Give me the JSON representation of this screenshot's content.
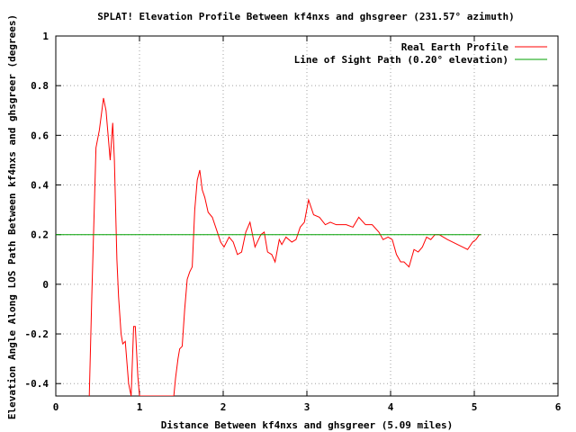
{
  "chart_data": {
    "type": "line",
    "title": "SPLAT! Elevation Profile Between kf4nxs and ghsgreer (231.57° azimuth)",
    "xlabel": "Distance Between kf4nxs and ghsgreer (5.09 miles)",
    "ylabel": "Elevation Angle Along LOS Path Between kf4nxs and ghsgreer (degrees)",
    "xlim": [
      0,
      6
    ],
    "ylim": [
      -0.45,
      1
    ],
    "xticks": [
      "0",
      "1",
      "2",
      "3",
      "4",
      "5",
      "6"
    ],
    "yticks": [
      "1",
      "0.8",
      "0.6",
      "0.4",
      "0.2",
      "0",
      "-0.2",
      "-0.4"
    ],
    "grid": true,
    "legend": "top-right",
    "series": [
      {
        "name": "Real Earth Profile",
        "color": "#ff0000",
        "x": [
          0.4,
          0.43,
          0.48,
          0.52,
          0.57,
          0.6,
          0.65,
          0.68,
          0.7,
          0.73,
          0.75,
          0.78,
          0.8,
          0.83,
          0.87,
          0.9,
          0.93,
          0.95,
          0.98,
          1.0,
          1.03,
          1.05,
          1.08,
          1.1,
          1.13,
          1.16,
          1.18,
          1.21,
          1.24,
          1.27,
          1.3,
          1.32,
          1.35,
          1.38,
          1.41,
          1.43,
          1.46,
          1.48,
          1.51,
          1.54,
          1.57,
          1.6,
          1.63,
          1.66,
          1.69,
          1.72,
          1.75,
          1.78,
          1.82,
          1.87,
          1.92,
          1.97,
          2.01,
          2.07,
          2.12,
          2.17,
          2.22,
          2.27,
          2.32,
          2.38,
          2.45,
          2.49,
          2.53,
          2.58,
          2.62,
          2.67,
          2.7,
          2.75,
          2.82,
          2.87,
          2.92,
          2.97,
          3.02,
          3.08,
          3.15,
          3.22,
          3.28,
          3.35,
          3.4,
          3.47,
          3.55,
          3.62,
          3.7,
          3.78,
          3.86,
          3.91,
          3.97,
          4.02,
          4.07,
          4.12,
          4.16,
          4.22,
          4.28,
          4.33,
          4.38,
          4.43,
          4.48,
          4.53,
          4.58,
          4.63,
          4.68,
          4.74,
          4.8,
          4.86,
          4.92,
          4.98,
          5.02,
          5.04,
          5.06,
          5.08
        ],
        "values": [
          -0.45,
          -0.05,
          0.55,
          0.62,
          0.75,
          0.7,
          0.5,
          0.65,
          0.5,
          0.1,
          -0.05,
          -0.2,
          -0.24,
          -0.23,
          -0.4,
          -0.45,
          -0.17,
          -0.17,
          -0.37,
          -0.45,
          -0.45,
          -0.45,
          -0.45,
          -0.45,
          -0.45,
          -0.45,
          -0.45,
          -0.45,
          -0.45,
          -0.45,
          -0.45,
          -0.45,
          -0.45,
          -0.45,
          -0.45,
          -0.38,
          -0.3,
          -0.26,
          -0.25,
          -0.1,
          0.02,
          0.05,
          0.07,
          0.3,
          0.42,
          0.46,
          0.38,
          0.35,
          0.29,
          0.27,
          0.22,
          0.17,
          0.15,
          0.19,
          0.17,
          0.12,
          0.13,
          0.21,
          0.25,
          0.15,
          0.2,
          0.21,
          0.13,
          0.12,
          0.09,
          0.18,
          0.16,
          0.19,
          0.17,
          0.18,
          0.23,
          0.25,
          0.34,
          0.28,
          0.27,
          0.24,
          0.25,
          0.24,
          0.24,
          0.24,
          0.23,
          0.27,
          0.24,
          0.24,
          0.21,
          0.18,
          0.19,
          0.18,
          0.12,
          0.09,
          0.09,
          0.07,
          0.14,
          0.13,
          0.15,
          0.19,
          0.18,
          0.2,
          0.2,
          0.19,
          0.18,
          0.17,
          0.16,
          0.15,
          0.14,
          0.17,
          0.18,
          0.19,
          0.2,
          0.2
        ]
      },
      {
        "name": "Line of Sight Path (0.20° elevation)",
        "color": "#00a000",
        "x": [
          0,
          5.08
        ],
        "values": [
          0.2,
          0.2
        ]
      }
    ]
  }
}
